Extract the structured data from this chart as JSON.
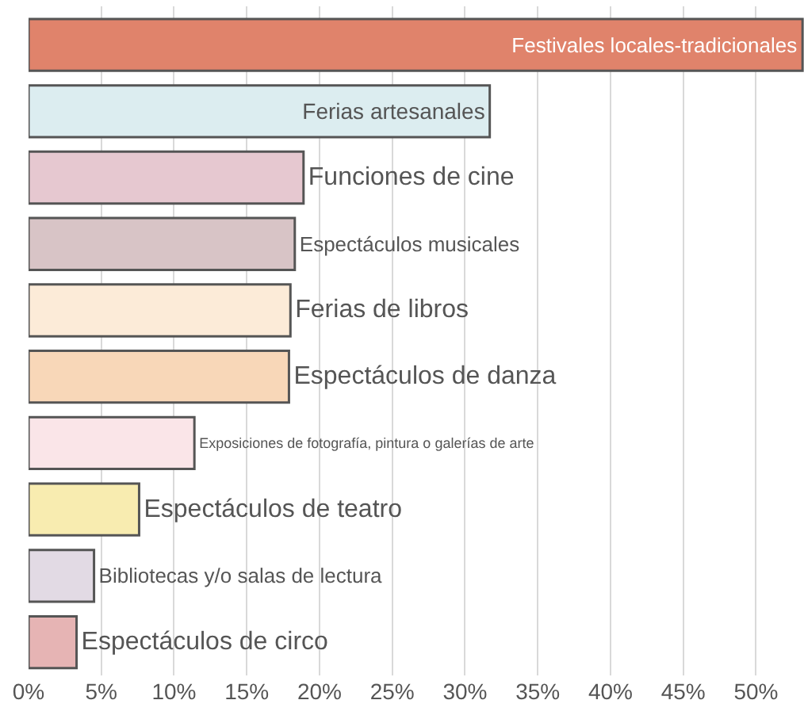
{
  "chart_data": {
    "type": "bar",
    "orientation": "horizontal",
    "categories": [
      "Festivales locales-tradicionales",
      "Ferias artesanales",
      "Funciones de cine",
      "Espectáculos musicales",
      "Ferias de libros",
      "Espectáculos de danza",
      "Exposiciones de fotografía, pintura o galerías de arte",
      "Espectáculos de teatro",
      "Bibliotecas y/o salas de lectura",
      "Espectáculos de circo"
    ],
    "values": [
      53.2,
      31.7,
      18.9,
      18.3,
      18.0,
      17.9,
      11.4,
      7.6,
      4.5,
      3.3
    ],
    "colors": [
      "#e0836b",
      "#dcedf0",
      "#e6c8d0",
      "#d8c4c6",
      "#fcebd8",
      "#f8d7b8",
      "#fae5e8",
      "#f8ecb0",
      "#e2dae4",
      "#e6b4b4"
    ],
    "xlim": [
      0,
      53.3
    ],
    "xticks": [
      {
        "value": 0,
        "label": "0%"
      },
      {
        "value": 5,
        "label": "5%"
      },
      {
        "value": 10,
        "label": "10%"
      },
      {
        "value": 15,
        "label": "15%"
      },
      {
        "value": 20,
        "label": "20%"
      },
      {
        "value": 25,
        "label": "25%"
      },
      {
        "value": 30,
        "label": "30%"
      },
      {
        "value": 35,
        "label": "35%"
      },
      {
        "value": 40,
        "label": "40%"
      },
      {
        "value": 45,
        "label": "45%"
      },
      {
        "value": 50,
        "label": "50%"
      }
    ],
    "grid": "x",
    "tick_labels": "x"
  }
}
